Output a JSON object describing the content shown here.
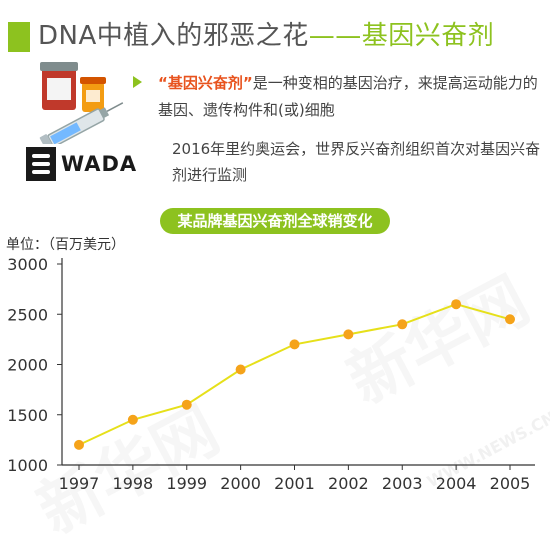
{
  "header": {
    "title_main": "DNA中植入的邪恶之花",
    "title_dash": "——",
    "title_accent": "基因兴奋剂"
  },
  "intro": {
    "highlight": "“基因兴奋剂”",
    "text": "是一种变相的基因治疗，来提高运动能力的基因、遗传构件和(或)细胞"
  },
  "wada": {
    "logo_text": "WADA",
    "note": "2016年里约奥运会，世界反兴奋剂组织首次对基因兴奋剂进行监测"
  },
  "watermark": {
    "text": "新华网",
    "url": "WWW.NEWS.CN"
  },
  "colors": {
    "accent": "#8dc21f",
    "highlight": "#e8531e",
    "line": "#e6e01a",
    "marker": "#f5a31a"
  },
  "chart_data": {
    "type": "line",
    "title": "某品牌基因兴奋剂全球销变化",
    "ylabel": "单位：（百万美元）",
    "xlabel": "",
    "categories": [
      "1997",
      "1998",
      "1999",
      "2000",
      "2001",
      "2002",
      "2003",
      "2004",
      "2005"
    ],
    "values": [
      1200,
      1450,
      1600,
      1950,
      2200,
      2300,
      2400,
      2600,
      2450
    ],
    "ylim": [
      1000,
      3000
    ],
    "yticks": [
      1000,
      1500,
      2000,
      2500,
      3000
    ],
    "grid": false,
    "legend": "none"
  }
}
